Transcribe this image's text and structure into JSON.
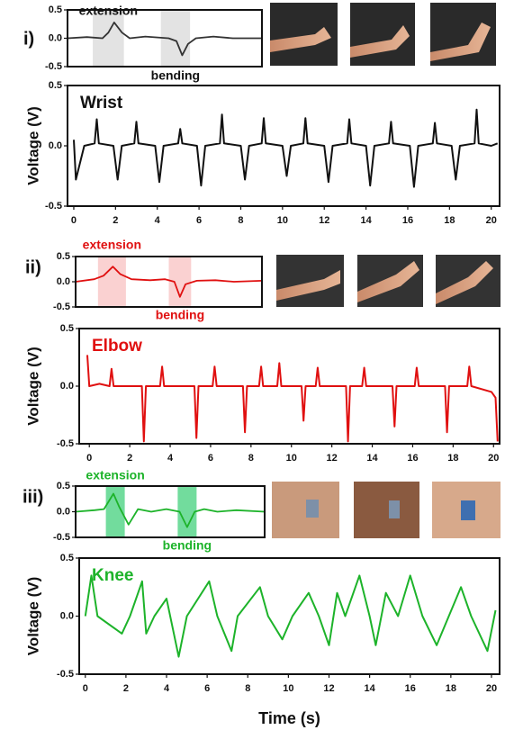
{
  "chart_data": [
    {
      "type": "line",
      "panel_label": "i)",
      "color": "#333333",
      "span_color": "#dcdcdc",
      "label_color": "#111111",
      "x": [
        0,
        1,
        1.8,
        2.1,
        2.4,
        2.8,
        3.2,
        4,
        5.2,
        5.6,
        5.9,
        6.2,
        6.6,
        7.5,
        8.5,
        10
      ],
      "values": [
        0,
        0.02,
        0,
        0.1,
        0.28,
        0.1,
        0,
        0.03,
        0,
        -0.05,
        -0.3,
        -0.1,
        0,
        0.03,
        0,
        0
      ],
      "annotations": [
        {
          "text": "extension",
          "x0": 1.3,
          "x1": 2.9
        },
        {
          "text": "bending",
          "x0": 4.8,
          "x1": 6.3
        }
      ],
      "xlim": [
        0,
        10
      ],
      "ylim": [
        -0.5,
        0.5
      ],
      "yticks": [
        -0.5,
        {
          "value": 0,
          "label": "0.0"
        },
        0.5
      ]
    },
    {
      "type": "line",
      "title": "Wrist",
      "color": "#111111",
      "title_color": "#111111",
      "ylabel": "Voltage (V)",
      "x": [
        0,
        0.1,
        0.5,
        1.0,
        1.1,
        1.2,
        1.9,
        2.1,
        2.3,
        2.9,
        3.0,
        3.1,
        3.9,
        4.1,
        4.3,
        5.0,
        5.1,
        5.2,
        5.9,
        6.1,
        6.3,
        7.0,
        7.1,
        7.2,
        8.0,
        8.2,
        8.4,
        9.0,
        9.1,
        9.2,
        10.0,
        10.2,
        10.4,
        11.0,
        11.1,
        11.2,
        12.0,
        12.2,
        12.4,
        13.1,
        13.2,
        13.3,
        14.0,
        14.2,
        14.4,
        15.1,
        15.2,
        15.3,
        16.1,
        16.3,
        16.5,
        17.2,
        17.3,
        17.4,
        18.1,
        18.3,
        18.5,
        19.2,
        19.3,
        19.4,
        20.0,
        20.3
      ],
      "values": [
        0.05,
        -0.28,
        0.0,
        0.02,
        0.22,
        0.02,
        0.0,
        -0.28,
        0.0,
        0.02,
        0.2,
        0.02,
        0.0,
        -0.3,
        0.0,
        0.02,
        0.14,
        0.02,
        0.0,
        -0.33,
        0.0,
        0.02,
        0.26,
        0.02,
        0.0,
        -0.28,
        0.0,
        0.02,
        0.23,
        0.02,
        0.0,
        -0.25,
        0.0,
        0.02,
        0.23,
        0.02,
        0.0,
        -0.3,
        0.0,
        0.02,
        0.22,
        0.02,
        0.0,
        -0.33,
        0.0,
        0.02,
        0.2,
        0.02,
        0.0,
        -0.34,
        0.0,
        0.02,
        0.19,
        0.02,
        0.0,
        -0.28,
        0.0,
        0.02,
        0.3,
        0.02,
        0.0,
        0.02
      ],
      "xlim": [
        -0.3,
        20.4
      ],
      "xticks": [
        0,
        2,
        4,
        6,
        8,
        10,
        12,
        14,
        16,
        18,
        20
      ],
      "ylim": [
        -0.5,
        0.5
      ],
      "yticks": [
        -0.5,
        {
          "value": 0,
          "label": "0.0"
        },
        0.5
      ]
    },
    {
      "type": "line",
      "panel_label": "ii)",
      "color": "#e01010",
      "span_color": "#f9c6c6",
      "label_color": "#e01010",
      "x": [
        0,
        1,
        1.5,
        2.0,
        2.4,
        3,
        4,
        4.8,
        5.3,
        5.6,
        5.9,
        6.5,
        7.5,
        8.5,
        10
      ],
      "values": [
        0,
        0.05,
        0.12,
        0.3,
        0.15,
        0.05,
        0.03,
        0.05,
        0,
        -0.3,
        -0.05,
        0.02,
        0.03,
        0,
        0.02
      ],
      "annotations": [
        {
          "text": "extension",
          "x0": 1.2,
          "x1": 2.7
        },
        {
          "text": "bending",
          "x0": 5.0,
          "x1": 6.2
        }
      ],
      "xlim": [
        0,
        10
      ],
      "ylim": [
        -0.5,
        0.5
      ],
      "yticks": [
        -0.5,
        {
          "value": 0,
          "label": "0.0"
        },
        0.5
      ]
    },
    {
      "type": "line",
      "title": "Elbow",
      "color": "#e01010",
      "title_color": "#e01010",
      "ylabel": "Voltage (V)",
      "x": [
        -0.1,
        0.0,
        0.5,
        1.0,
        1.1,
        1.2,
        2.6,
        2.7,
        2.8,
        3.5,
        3.6,
        3.7,
        5.2,
        5.3,
        5.4,
        6.1,
        6.2,
        6.3,
        7.6,
        7.7,
        7.8,
        8.4,
        8.5,
        8.6,
        9.3,
        9.4,
        9.5,
        10.5,
        10.6,
        10.7,
        11.2,
        11.3,
        11.4,
        12.7,
        12.8,
        12.9,
        13.5,
        13.6,
        13.7,
        15.0,
        15.1,
        15.2,
        16.1,
        16.2,
        16.3,
        17.6,
        17.7,
        17.8,
        18.7,
        18.8,
        18.9,
        19.9,
        20.1,
        20.2
      ],
      "values": [
        0.27,
        0.0,
        0.02,
        0.0,
        0.15,
        0.0,
        0.0,
        -0.48,
        0.0,
        0.0,
        0.17,
        0.0,
        0.0,
        -0.45,
        0.0,
        0.0,
        0.17,
        0.0,
        0.0,
        -0.4,
        0.0,
        0.0,
        0.17,
        0.0,
        0.0,
        0.2,
        0.0,
        0.0,
        -0.3,
        0.0,
        0.0,
        0.16,
        0.0,
        0.0,
        -0.48,
        0.0,
        0.0,
        0.16,
        0.0,
        0.0,
        -0.35,
        0.0,
        0.0,
        0.16,
        0.0,
        0.0,
        -0.4,
        0.0,
        0.0,
        0.17,
        0.0,
        -0.05,
        -0.1,
        -0.48
      ],
      "xlim": [
        -0.5,
        20.3
      ],
      "xticks": [
        0,
        2,
        4,
        6,
        8,
        10,
        12,
        14,
        16,
        18,
        20
      ],
      "ylim": [
        -0.5,
        0.5
      ],
      "yticks": [
        -0.5,
        {
          "value": 0,
          "label": "0.0"
        },
        0.5
      ]
    },
    {
      "type": "line",
      "panel_label": "iii)",
      "color": "#1db32a",
      "span_color": "#4fd384",
      "label_color": "#1db32a",
      "x": [
        0,
        1,
        1.5,
        2.0,
        2.3,
        2.8,
        3.3,
        4,
        4.8,
        5.5,
        5.9,
        6.3,
        6.8,
        7.5,
        8.5,
        10
      ],
      "values": [
        0,
        0.03,
        0.05,
        0.35,
        0.1,
        -0.25,
        0.05,
        0,
        0.05,
        0,
        -0.3,
        0,
        0.05,
        0,
        0.03,
        0
      ],
      "annotations": [
        {
          "text": "extension",
          "x0": 1.6,
          "x1": 2.6
        },
        {
          "text": "bending",
          "x0": 5.4,
          "x1": 6.4
        }
      ],
      "xlim": [
        0,
        10
      ],
      "ylim": [
        -0.5,
        0.5
      ],
      "yticks": [
        -0.5,
        {
          "value": 0,
          "label": "0.0"
        },
        0.5
      ]
    },
    {
      "type": "line",
      "title": "Knee",
      "color": "#1db32a",
      "title_color": "#1db32a",
      "ylabel": "Voltage (V)",
      "xlabel": "Time (s)",
      "x": [
        0.0,
        0.3,
        0.6,
        1.8,
        2.2,
        2.8,
        3.0,
        3.4,
        4.0,
        4.6,
        5.0,
        6.1,
        6.5,
        7.2,
        7.5,
        8.6,
        9.0,
        9.7,
        10.2,
        11.0,
        11.5,
        12.0,
        12.4,
        12.8,
        13.5,
        14.0,
        14.3,
        14.8,
        15.4,
        16.0,
        16.6,
        17.3,
        17.9,
        18.5,
        19.0,
        19.8,
        20.2
      ],
      "values": [
        0.0,
        0.35,
        0.0,
        -0.15,
        0.0,
        0.3,
        -0.15,
        0.0,
        0.15,
        -0.35,
        0.0,
        0.3,
        0.0,
        -0.3,
        0.0,
        0.25,
        0.0,
        -0.2,
        0.0,
        0.2,
        0.0,
        -0.25,
        0.2,
        0.0,
        0.35,
        0.0,
        -0.25,
        0.2,
        0.0,
        0.35,
        0.0,
        -0.25,
        0.0,
        0.25,
        0.0,
        -0.3,
        0.05
      ],
      "xlim": [
        -0.3,
        20.4
      ],
      "xticks": [
        0,
        2,
        4,
        6,
        8,
        10,
        12,
        14,
        16,
        18,
        20
      ],
      "ylim": [
        -0.5,
        0.5
      ],
      "yticks": [
        -0.5,
        {
          "value": 0,
          "label": "0.0"
        },
        0.5
      ]
    }
  ]
}
